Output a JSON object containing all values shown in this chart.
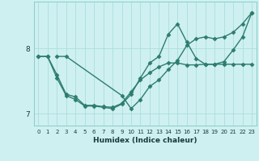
{
  "xlabel": "Humidex (Indice chaleur)",
  "bg_color": "#cff0f0",
  "line_color": "#2d7d6e",
  "grid_color": "#aadddd",
  "line1_x": [
    0,
    1,
    2,
    3,
    4,
    5,
    6,
    7,
    8,
    9,
    10,
    11,
    12,
    13,
    14,
    15,
    16,
    17,
    18,
    19,
    20,
    21,
    22,
    23
  ],
  "line1_y": [
    7.88,
    7.88,
    7.6,
    7.3,
    7.26,
    7.13,
    7.13,
    7.11,
    7.1,
    7.16,
    7.34,
    7.52,
    7.63,
    7.72,
    7.78,
    7.78,
    7.75,
    7.75,
    7.76,
    7.76,
    7.76,
    7.76,
    7.76,
    7.76
  ],
  "line2_x": [
    0,
    1,
    2,
    3,
    4,
    5,
    6,
    7,
    8,
    9,
    10,
    11,
    12,
    13,
    14,
    15,
    16,
    17,
    18,
    19,
    20,
    21,
    22,
    23
  ],
  "line2_y": [
    7.88,
    7.88,
    7.55,
    7.28,
    7.22,
    7.12,
    7.12,
    7.1,
    7.08,
    7.15,
    7.3,
    7.55,
    7.78,
    7.88,
    8.22,
    8.38,
    8.1,
    7.85,
    7.76,
    7.76,
    7.8,
    7.98,
    8.18,
    8.55
  ],
  "line3_x": [
    2,
    3,
    9,
    10,
    11,
    12,
    13,
    14,
    15,
    16,
    17,
    18,
    19,
    20,
    21,
    22,
    23
  ],
  "line3_y": [
    7.88,
    7.88,
    7.28,
    7.08,
    7.22,
    7.42,
    7.52,
    7.68,
    7.82,
    8.05,
    8.15,
    8.18,
    8.15,
    8.18,
    8.25,
    8.38,
    8.55
  ],
  "ylim": [
    6.82,
    8.72
  ],
  "xlim": [
    -0.5,
    23.5
  ],
  "yticks": [
    7,
    8
  ],
  "xticks": [
    0,
    1,
    2,
    3,
    4,
    5,
    6,
    7,
    8,
    9,
    10,
    11,
    12,
    13,
    14,
    15,
    16,
    17,
    18,
    19,
    20,
    21,
    22,
    23
  ],
  "marker": "D",
  "markersize": 2.5,
  "linewidth": 1.0
}
